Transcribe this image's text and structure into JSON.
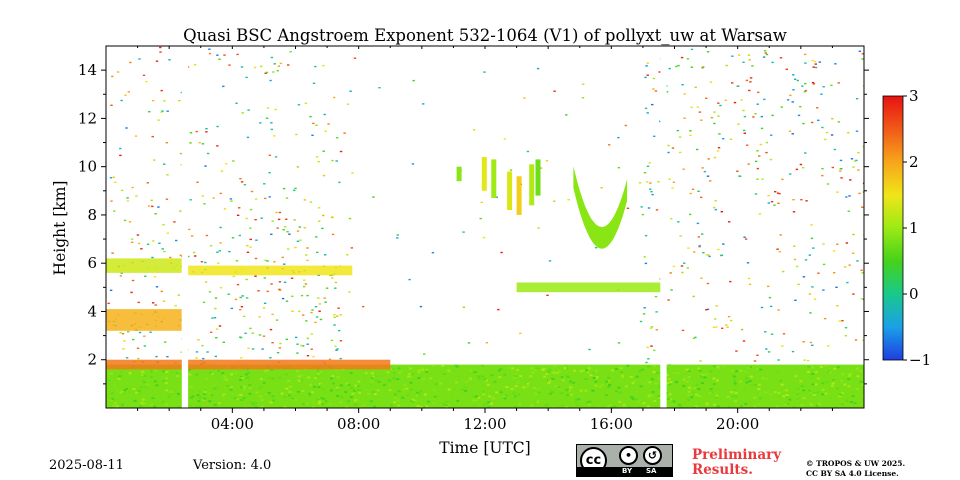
{
  "chart_data": {
    "type": "heatmap",
    "title": "Quasi BSC Angstroem Exponent 532-1064 (V1) of pollyxt_uw at Warsaw",
    "xlabel": "Time [UTC]",
    "ylabel": "Height [km]",
    "x_unit": "hours UTC",
    "xlim": [
      0,
      24
    ],
    "ylim": [
      0,
      15
    ],
    "x_ticks": [
      {
        "value": 4,
        "label": "04:00"
      },
      {
        "value": 8,
        "label": "08:00"
      },
      {
        "value": 12,
        "label": "12:00"
      },
      {
        "value": 16,
        "label": "16:00"
      },
      {
        "value": 20,
        "label": "20:00"
      }
    ],
    "y_ticks": [
      {
        "value": 2,
        "label": "2"
      },
      {
        "value": 4,
        "label": "4"
      },
      {
        "value": 6,
        "label": "6"
      },
      {
        "value": 8,
        "label": "8"
      },
      {
        "value": 10,
        "label": "10"
      },
      {
        "value": 12,
        "label": "12"
      },
      {
        "value": 14,
        "label": "14"
      }
    ],
    "colorbar": {
      "range": [
        -1,
        3
      ],
      "ticks": [
        {
          "value": -1,
          "label": "−1"
        },
        {
          "value": 0,
          "label": "0"
        },
        {
          "value": 1,
          "label": "1"
        },
        {
          "value": 2,
          "label": "2"
        },
        {
          "value": 3,
          "label": "3"
        }
      ],
      "colors": [
        "#1f3ee0",
        "#1aa0e8",
        "#19c98b",
        "#45d21a",
        "#9bea14",
        "#f0e518",
        "#f7a51a",
        "#f05a18",
        "#e81212"
      ]
    },
    "features": [
      {
        "name": "boundary layer",
        "t_start": 0,
        "t_end": 24,
        "h_bottom": 0,
        "h_top": 1.8,
        "value": 0.8
      },
      {
        "name": "boundary layer top",
        "t_start": 0,
        "t_end": 9,
        "h_bottom": 1.6,
        "h_top": 2.0,
        "value": 2.3
      },
      {
        "name": "aerosol layer 6 km",
        "t_start": 0,
        "t_end": 2.4,
        "h_bottom": 5.6,
        "h_top": 6.2,
        "value": 1.3
      },
      {
        "name": "aerosol layer 5.7 km",
        "t_start": 2.6,
        "t_end": 7.8,
        "h_bottom": 5.5,
        "h_top": 5.9,
        "value": 1.5
      },
      {
        "name": "aerosol layer 3.8 km",
        "t_start": 0,
        "t_end": 2.4,
        "h_bottom": 3.2,
        "h_top": 4.1,
        "value": 1.9
      },
      {
        "name": "aerosol layer 5 km",
        "t_start": 13.0,
        "t_end": 17.6,
        "h_bottom": 4.8,
        "h_top": 5.2,
        "value": 1.0
      },
      {
        "name": "cirrus plume",
        "t_start": 14.8,
        "t_end": 16.5,
        "h_bottom": 6.6,
        "h_top": 10.5,
        "value": 0.9
      },
      {
        "name": "cirrus fragments",
        "t_start": 11.0,
        "t_end": 14.0,
        "h_bottom": 8.0,
        "h_top": 10.5,
        "value": 1.2
      }
    ],
    "data_gaps": [
      {
        "t_start": 2.4,
        "t_end": 2.6
      },
      {
        "t_start": 17.55,
        "t_end": 17.75
      }
    ]
  },
  "footer": {
    "date": "2025-08-11",
    "version": "Version: 4.0",
    "preliminary_line1": "Preliminary",
    "preliminary_line2": "Results.",
    "license_line1": "© TROPOS & UW 2025.",
    "license_line2": "CC BY SA 4.0 License.",
    "badge_by": "BY",
    "badge_sa": "SA",
    "badge_cc": "cc"
  }
}
